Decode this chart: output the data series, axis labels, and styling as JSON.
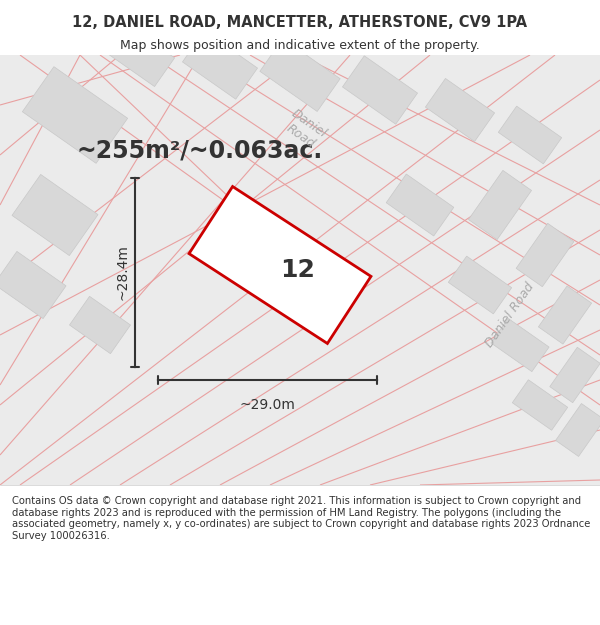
{
  "title_line1": "12, DANIEL ROAD, MANCETTER, ATHERSTONE, CV9 1PA",
  "title_line2": "Map shows position and indicative extent of the property.",
  "area_text": "~255m²/~0.063ac.",
  "house_number": "12",
  "dim_width": "~29.0m",
  "dim_height": "~28.4m",
  "road_label1": "Daniel Road",
  "road_label2": "Daniel Road",
  "road_label3": "Daniel",
  "road_label4": "Road",
  "footer": "Contains OS data © Crown copyright and database right 2021. This information is subject to Crown copyright and database rights 2023 and is reproduced with the permission of HM Land Registry. The polygons (including the associated geometry, namely x, y co-ordinates) are subject to Crown copyright and database rights 2023 Ordnance Survey 100026316.",
  "bg_color": "#f0f0f0",
  "map_bg": "#ebebeb",
  "building_fill": "#d8d8d8",
  "building_stroke": "#c8c8c8",
  "road_line_color": "#e8a0a0",
  "plot_stroke": "#cc0000",
  "plot_fill": "#f0f0f0",
  "dim_line_color": "#333333",
  "text_color": "#333333",
  "road_text_color": "#aaaaaa",
  "footer_color": "#333333"
}
